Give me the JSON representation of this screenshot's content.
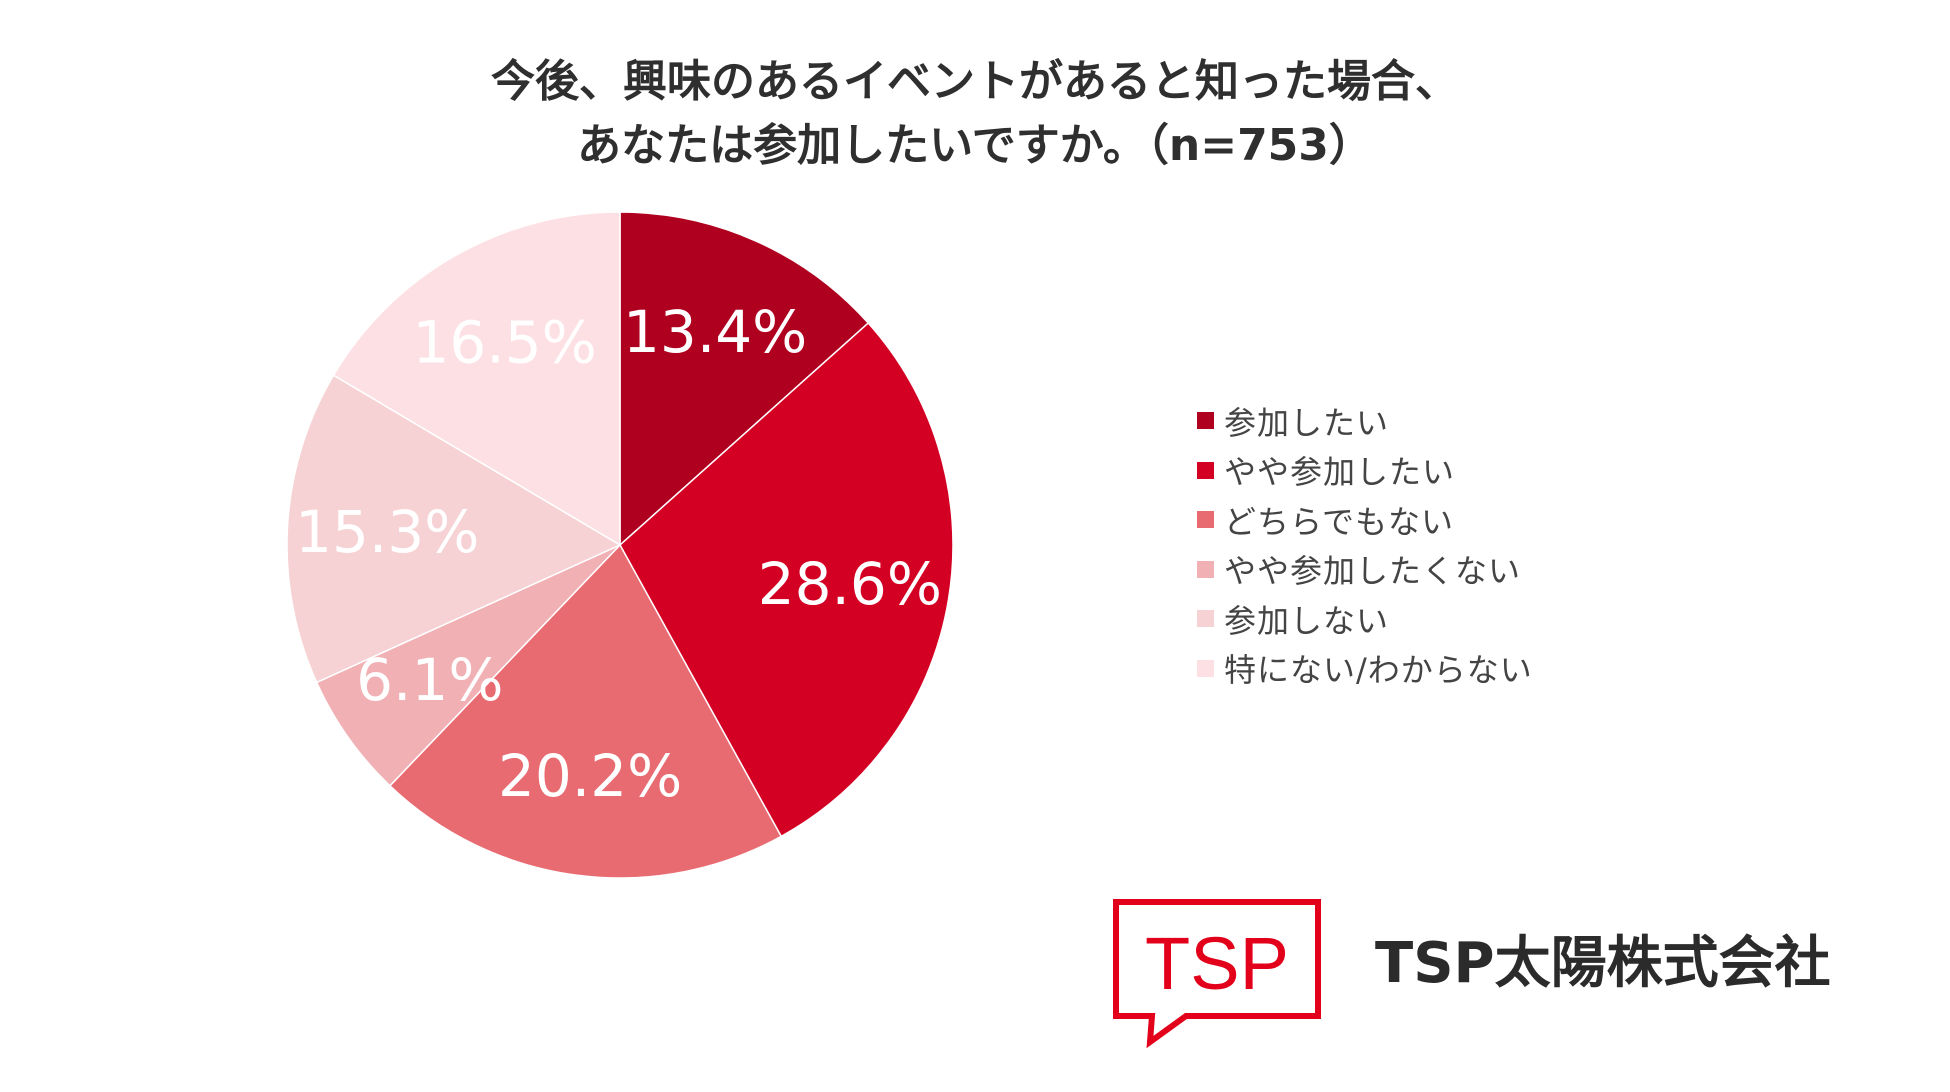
{
  "chart_data": {
    "type": "pie",
    "title_lines": [
      "今後、興味のあるイベントがあると知った場合、",
      "あなたは参加したいですか。（n=753）"
    ],
    "categories": [
      "参加したい",
      "やや参加したい",
      "どちらでもない",
      "やや参加したくない",
      "参加しない",
      "特にない/わからない"
    ],
    "values": [
      13.4,
      28.6,
      20.2,
      6.1,
      15.3,
      16.5
    ],
    "value_labels": [
      "13.4%",
      "28.6%",
      "20.2%",
      "6.1%",
      "15.3%",
      "16.5%"
    ],
    "colors": [
      "#b0001f",
      "#d40024",
      "#e96b72",
      "#f0b0b4",
      "#f6d2d4",
      "#fde0e4"
    ],
    "start_angle": "12 o'clock",
    "direction": "clockwise",
    "legend_position": "right",
    "label_colors": [
      "#ffffff",
      "#ffffff",
      "#ffffff",
      "#ffffff",
      "#ffffff",
      "#ffffff"
    ]
  },
  "logo": {
    "text": "TSP",
    "color": "#e2001a"
  },
  "company_name": "TSP太陽株式会社"
}
